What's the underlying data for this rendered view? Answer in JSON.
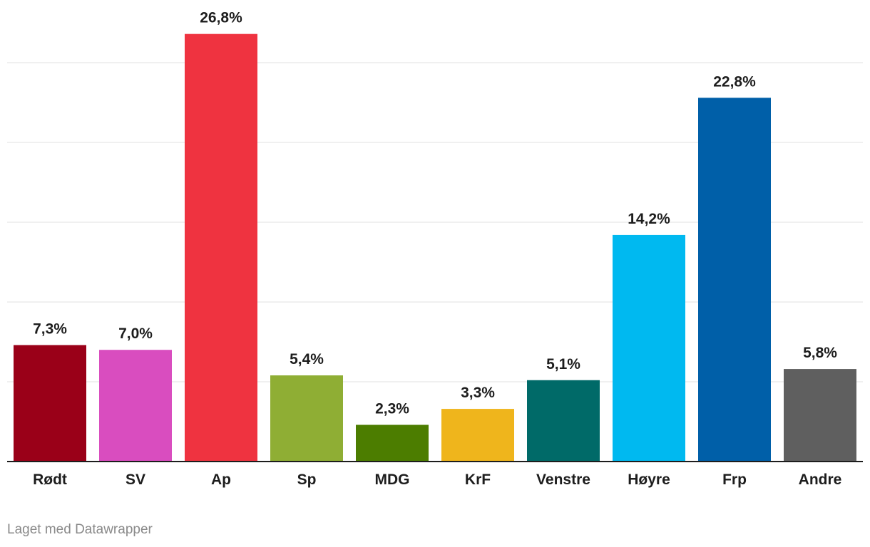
{
  "chart_data": {
    "type": "bar",
    "categories": [
      "Rødt",
      "SV",
      "Ap",
      "Sp",
      "MDG",
      "KrF",
      "Venstre",
      "Høyre",
      "Frp",
      "Andre"
    ],
    "values": [
      7.3,
      7.0,
      26.8,
      5.4,
      2.3,
      3.3,
      5.1,
      14.2,
      22.8,
      5.8
    ],
    "value_labels": [
      "7,3%",
      "7,0%",
      "26,8%",
      "5,4%",
      "2,3%",
      "3,3%",
      "5,1%",
      "14,2%",
      "22,8%",
      "5,8%"
    ],
    "colors": [
      "#9a0018",
      "#d94dbf",
      "#ef3340",
      "#8fae34",
      "#4c7d00",
      "#efb51c",
      "#006a68",
      "#00b9f0",
      "#005fa8",
      "#5f5f5f"
    ],
    "ylim": [
      0,
      25
    ],
    "grid": true,
    "title": "",
    "xlabel": "",
    "ylabel": ""
  },
  "footer": {
    "credit": "Laget med Datawrapper"
  }
}
